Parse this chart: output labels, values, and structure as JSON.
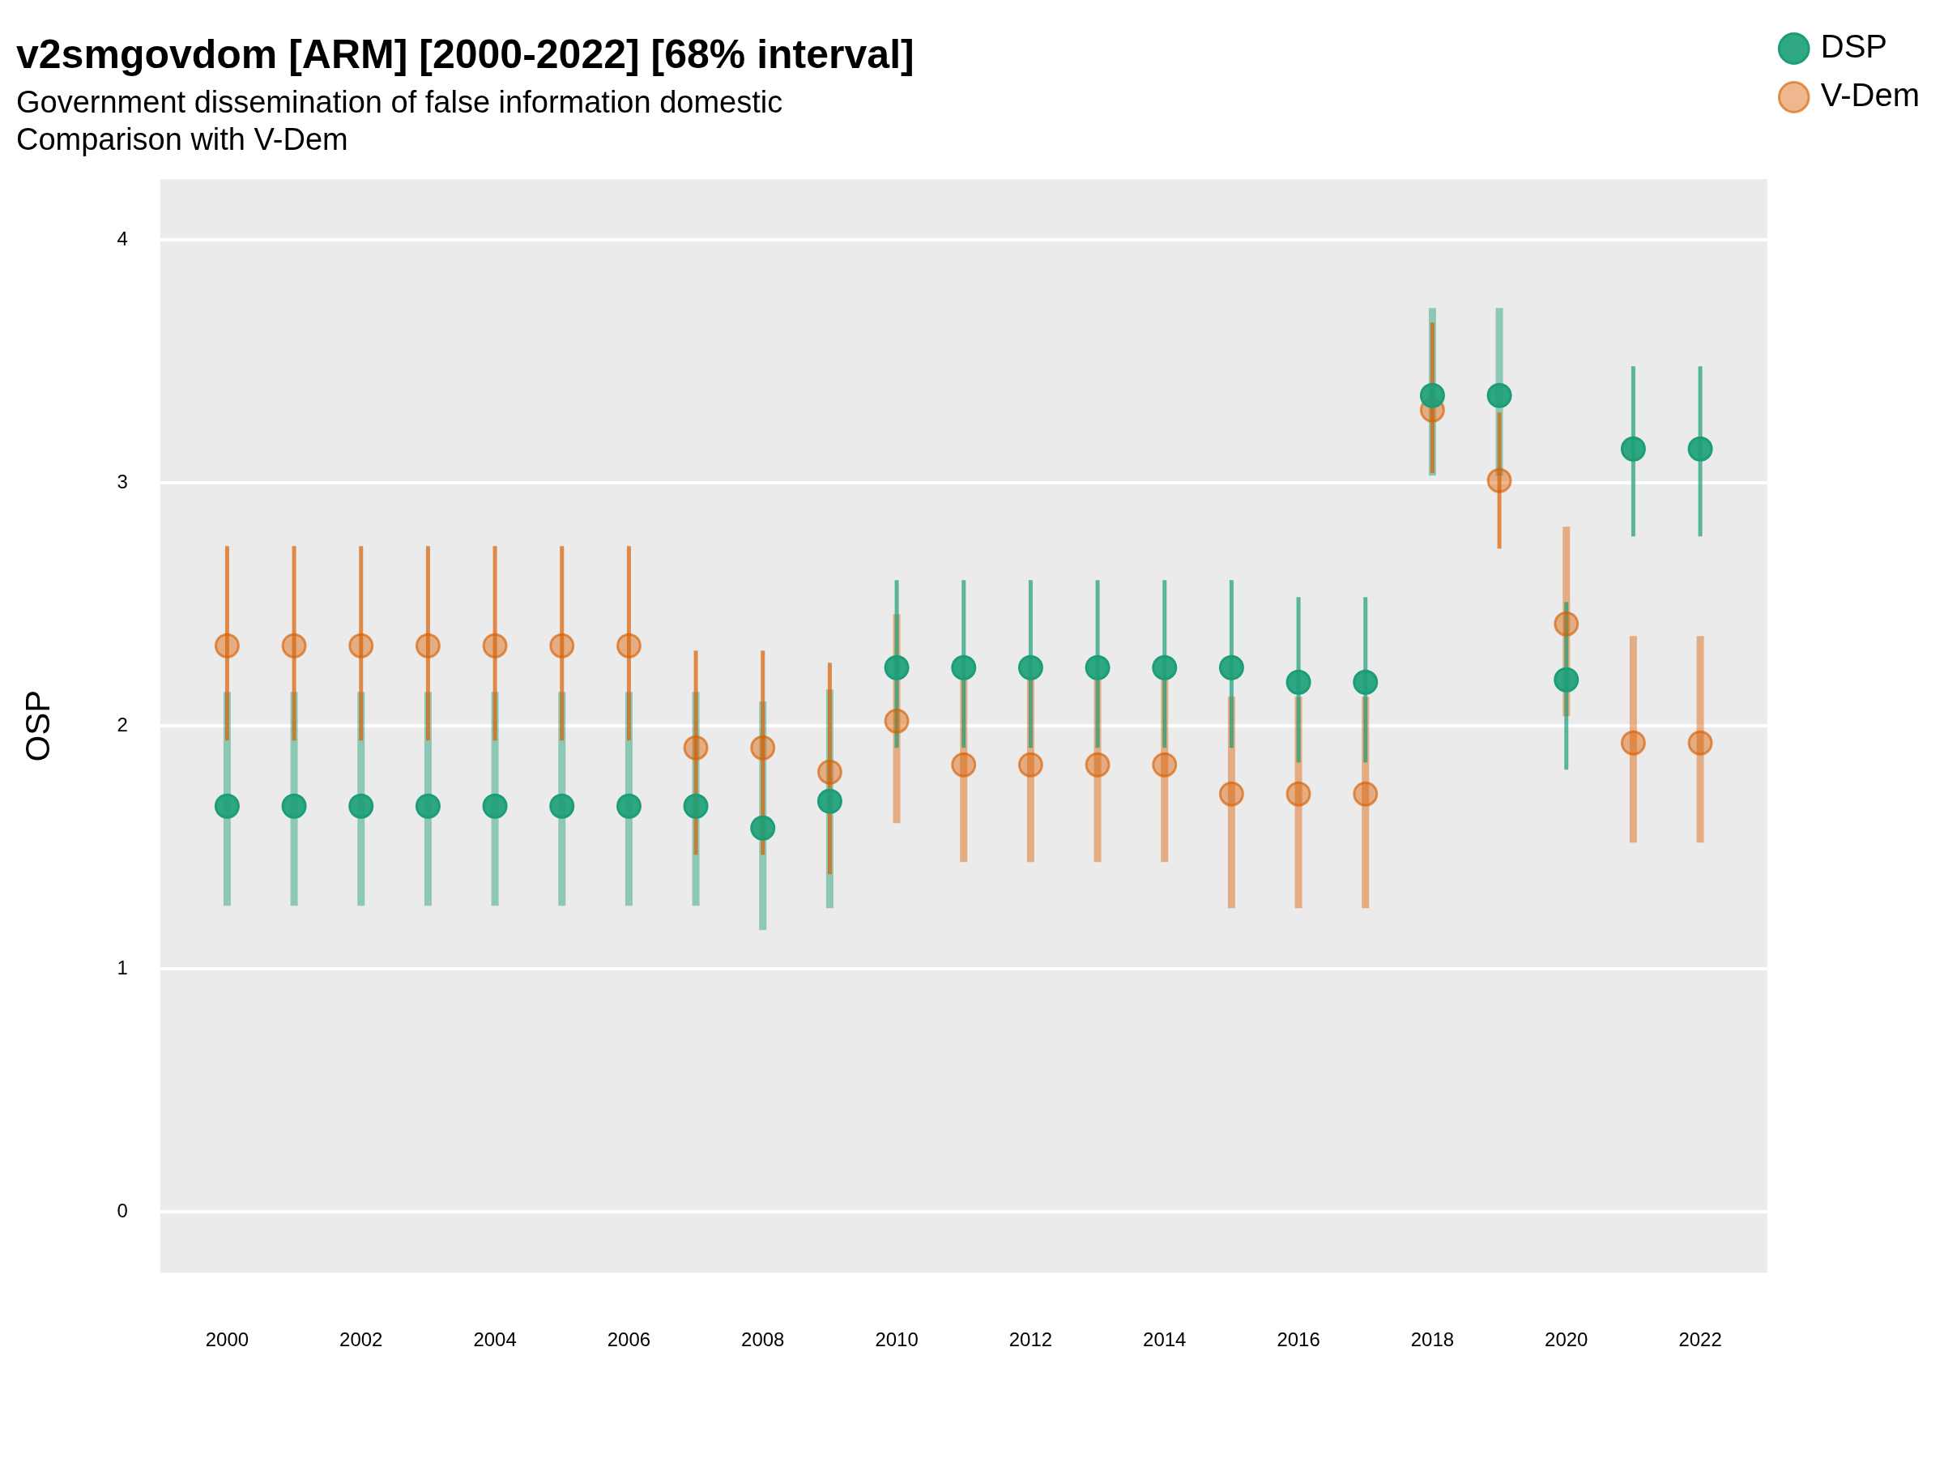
{
  "chart_data": {
    "type": "scatter",
    "title": "v2smgovdom [ARM] [2000-2022] [68% interval]",
    "subtitle": "Government dissemination of false information domestic\nComparison with V-Dem",
    "ylabel": "OSP",
    "x": [
      2000,
      2001,
      2002,
      2003,
      2004,
      2005,
      2006,
      2007,
      2008,
      2009,
      2010,
      2011,
      2012,
      2013,
      2014,
      2015,
      2016,
      2017,
      2018,
      2019,
      2020,
      2021,
      2022
    ],
    "series": [
      {
        "name": "DSP",
        "color": "#1b9e77",
        "values": [
          1.67,
          1.67,
          1.67,
          1.67,
          1.67,
          1.67,
          1.67,
          1.67,
          1.58,
          1.69,
          2.24,
          2.24,
          2.24,
          2.24,
          2.24,
          2.24,
          2.18,
          2.18,
          3.36,
          3.36,
          2.19,
          3.14,
          3.14
        ],
        "errors": [
          [
            1.26,
            2.14
          ],
          [
            1.26,
            2.14
          ],
          [
            1.26,
            2.14
          ],
          [
            1.26,
            2.14
          ],
          [
            1.26,
            2.14
          ],
          [
            1.26,
            2.14
          ],
          [
            1.26,
            2.14
          ],
          [
            1.26,
            2.14
          ],
          [
            1.16,
            2.1
          ],
          [
            1.25,
            2.15
          ],
          [
            1.91,
            2.6
          ],
          [
            1.91,
            2.6
          ],
          [
            1.91,
            2.6
          ],
          [
            1.91,
            2.6
          ],
          [
            1.91,
            2.6
          ],
          [
            1.91,
            2.6
          ],
          [
            1.85,
            2.53
          ],
          [
            1.85,
            2.53
          ],
          [
            3.03,
            3.72
          ],
          [
            3.03,
            3.72
          ],
          [
            1.82,
            2.51
          ],
          [
            2.78,
            3.48
          ],
          [
            2.78,
            3.48
          ]
        ]
      },
      {
        "name": "V-Dem",
        "color": "#d95f02",
        "values": [
          2.33,
          2.33,
          2.33,
          2.33,
          2.33,
          2.33,
          2.33,
          1.91,
          1.91,
          1.81,
          2.02,
          1.84,
          1.84,
          1.84,
          1.84,
          1.72,
          1.72,
          1.72,
          3.3,
          3.01,
          2.42,
          1.93,
          1.93
        ],
        "errors": [
          [
            1.94,
            2.74
          ],
          [
            1.94,
            2.74
          ],
          [
            1.94,
            2.74
          ],
          [
            1.94,
            2.74
          ],
          [
            1.94,
            2.74
          ],
          [
            1.94,
            2.74
          ],
          [
            1.94,
            2.74
          ],
          [
            1.47,
            2.31
          ],
          [
            1.47,
            2.31
          ],
          [
            1.39,
            2.26
          ],
          [
            1.6,
            2.46
          ],
          [
            1.44,
            2.2
          ],
          [
            1.44,
            2.2
          ],
          [
            1.44,
            2.2
          ],
          [
            1.44,
            2.2
          ],
          [
            1.25,
            2.12
          ],
          [
            1.25,
            2.12
          ],
          [
            1.25,
            2.12
          ],
          [
            3.04,
            3.66
          ],
          [
            2.73,
            3.29
          ],
          [
            2.04,
            2.82
          ],
          [
            1.52,
            2.37
          ],
          [
            1.52,
            2.37
          ]
        ]
      }
    ],
    "xlim": [
      1999,
      2023
    ],
    "xticks": [
      2000,
      2002,
      2004,
      2006,
      2008,
      2010,
      2012,
      2014,
      2016,
      2018,
      2020,
      2022
    ],
    "ylim": [
      -0.25,
      4.25
    ],
    "yticks": [
      0,
      1,
      2,
      3,
      4
    ],
    "grid": "y",
    "legend": "right",
    "marker": "circle"
  }
}
